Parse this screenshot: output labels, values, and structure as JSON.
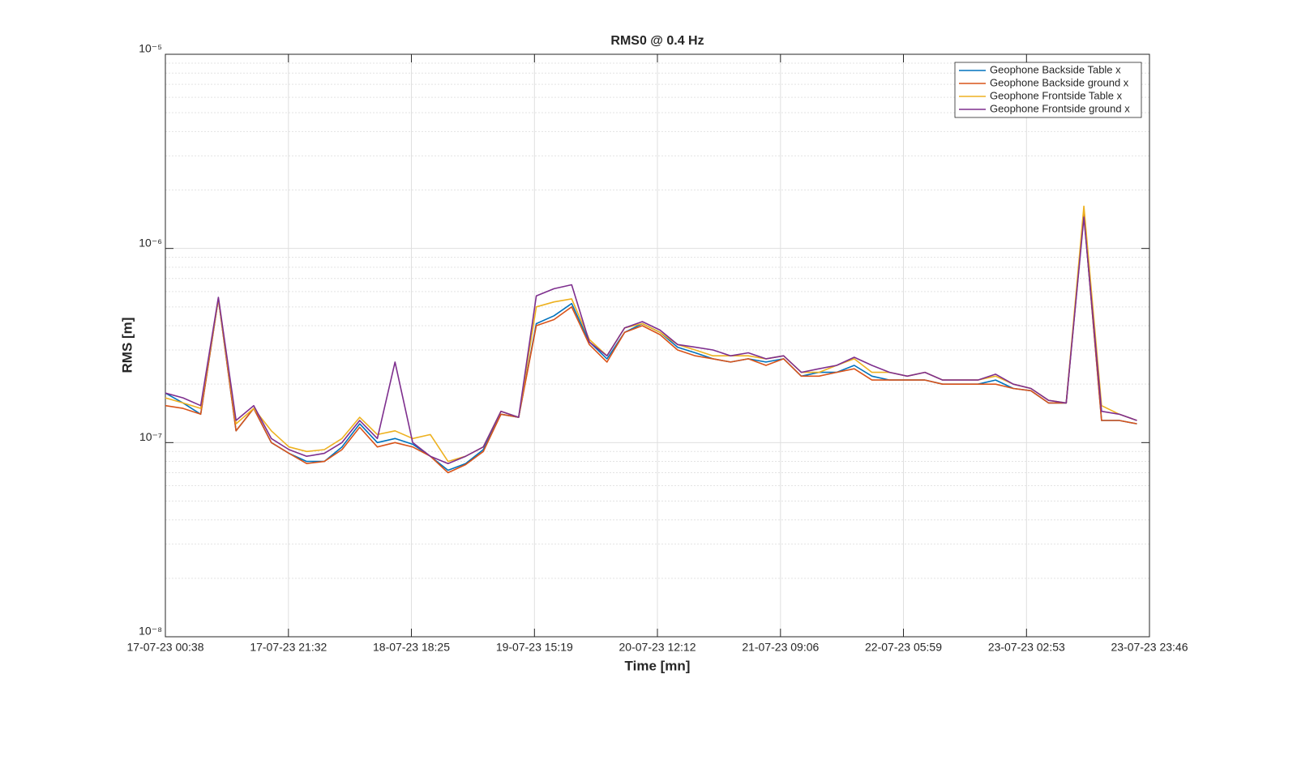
{
  "chart_data": {
    "type": "line",
    "title": "RMS0 @ 0.4 Hz",
    "x_label": "Time [mn]",
    "y_label": "RMS [m]",
    "x": [
      "17-07-23 00:38",
      "17-07-23 03:38",
      "17-07-23 06:38",
      "17-07-23 09:38",
      "17-07-23 12:38",
      "17-07-23 15:38",
      "17-07-23 18:38",
      "17-07-23 21:38",
      "18-07-23 00:38",
      "18-07-23 03:38",
      "18-07-23 06:38",
      "18-07-23 09:38",
      "18-07-23 12:38",
      "18-07-23 15:38",
      "18-07-23 18:38",
      "18-07-23 21:38",
      "19-07-23 00:38",
      "19-07-23 03:38",
      "19-07-23 06:38",
      "19-07-23 09:38",
      "19-07-23 12:38",
      "19-07-23 15:38",
      "19-07-23 18:38",
      "19-07-23 21:38",
      "20-07-23 00:38",
      "20-07-23 03:38",
      "20-07-23 06:38",
      "20-07-23 09:38",
      "20-07-23 12:38",
      "20-07-23 15:38",
      "20-07-23 18:38",
      "20-07-23 21:38",
      "21-07-23 00:38",
      "21-07-23 03:38",
      "21-07-23 06:38",
      "21-07-23 09:38",
      "21-07-23 12:38",
      "21-07-23 15:38",
      "21-07-23 18:38",
      "21-07-23 21:38",
      "22-07-23 00:38",
      "22-07-23 03:38",
      "22-07-23 06:38",
      "22-07-23 09:38",
      "22-07-23 12:38",
      "22-07-23 15:38",
      "22-07-23 18:38",
      "22-07-23 21:38",
      "23-07-23 00:38",
      "23-07-23 03:38",
      "23-07-23 06:38",
      "23-07-23 09:38",
      "23-07-23 12:38",
      "23-07-23 15:38",
      "23-07-23 18:38",
      "23-07-23 21:38"
    ],
    "series": [
      {
        "name": "Geophone Backside Table x",
        "color": "#0072BD",
        "values": [
          1.8e-07,
          1.6e-07,
          1.4e-07,
          5.5e-07,
          1.15e-07,
          1.5e-07,
          1e-07,
          8.8e-08,
          8e-08,
          8e-08,
          9.5e-08,
          1.25e-07,
          1e-07,
          1.05e-07,
          9.8e-08,
          8.5e-08,
          7.2e-08,
          7.8e-08,
          9.2e-08,
          1.4e-07,
          1.35e-07,
          4.1e-07,
          4.5e-07,
          5.2e-07,
          3.3e-07,
          2.7e-07,
          3.7e-07,
          4.1e-07,
          3.7e-07,
          3.1e-07,
          2.9e-07,
          2.7e-07,
          2.6e-07,
          2.7e-07,
          2.6e-07,
          2.7e-07,
          2.2e-07,
          2.3e-07,
          2.3e-07,
          2.5e-07,
          2.2e-07,
          2.1e-07,
          2.1e-07,
          2.1e-07,
          2e-07,
          2e-07,
          2e-07,
          2.1e-07,
          1.9e-07,
          1.85e-07,
          1.6e-07,
          1.6e-07,
          1.5e-06,
          1.3e-07,
          1.3e-07,
          1.25e-07
        ]
      },
      {
        "name": "Geophone Backside ground x",
        "color": "#D95319",
        "values": [
          1.55e-07,
          1.5e-07,
          1.4e-07,
          5.5e-07,
          1.15e-07,
          1.5e-07,
          1e-07,
          8.8e-08,
          7.8e-08,
          8e-08,
          9.2e-08,
          1.2e-07,
          9.5e-08,
          1e-07,
          9.5e-08,
          8.5e-08,
          7e-08,
          7.7e-08,
          9e-08,
          1.4e-07,
          1.35e-07,
          4e-07,
          4.3e-07,
          5e-07,
          3.2e-07,
          2.6e-07,
          3.7e-07,
          4e-07,
          3.6e-07,
          3e-07,
          2.8e-07,
          2.7e-07,
          2.6e-07,
          2.7e-07,
          2.5e-07,
          2.7e-07,
          2.2e-07,
          2.2e-07,
          2.3e-07,
          2.4e-07,
          2.1e-07,
          2.1e-07,
          2.1e-07,
          2.1e-07,
          2e-07,
          2e-07,
          2e-07,
          2e-07,
          1.9e-07,
          1.85e-07,
          1.6e-07,
          1.6e-07,
          1.5e-06,
          1.3e-07,
          1.3e-07,
          1.25e-07
        ]
      },
      {
        "name": "Geophone Frontside Table x",
        "color": "#EDB120",
        "values": [
          1.7e-07,
          1.6e-07,
          1.5e-07,
          5.5e-07,
          1.25e-07,
          1.5e-07,
          1.15e-07,
          9.5e-08,
          9e-08,
          9.2e-08,
          1.05e-07,
          1.35e-07,
          1.1e-07,
          1.15e-07,
          1.05e-07,
          1.1e-07,
          8e-08,
          8.5e-08,
          9.5e-08,
          1.45e-07,
          1.35e-07,
          5e-07,
          5.3e-07,
          5.5e-07,
          3.4e-07,
          2.8e-07,
          3.9e-07,
          4.1e-07,
          3.7e-07,
          3.2e-07,
          3e-07,
          2.8e-07,
          2.8e-07,
          2.8e-07,
          2.7e-07,
          2.8e-07,
          2.3e-07,
          2.3e-07,
          2.5e-07,
          2.7e-07,
          2.3e-07,
          2.3e-07,
          2.2e-07,
          2.3e-07,
          2.1e-07,
          2.1e-07,
          2.1e-07,
          2.2e-07,
          2e-07,
          1.9e-07,
          1.65e-07,
          1.6e-07,
          1.65e-06,
          1.55e-07,
          1.4e-07,
          1.3e-07
        ]
      },
      {
        "name": "Geophone Frontside ground x",
        "color": "#7E2F8E",
        "values": [
          1.8e-07,
          1.7e-07,
          1.55e-07,
          5.6e-07,
          1.3e-07,
          1.55e-07,
          1.05e-07,
          9.2e-08,
          8.5e-08,
          8.8e-08,
          1e-07,
          1.3e-07,
          1.05e-07,
          2.6e-07,
          1e-07,
          8.5e-08,
          7.8e-08,
          8.5e-08,
          9.5e-08,
          1.45e-07,
          1.35e-07,
          5.7e-07,
          6.2e-07,
          6.5e-07,
          3.3e-07,
          2.8e-07,
          3.9e-07,
          4.2e-07,
          3.8e-07,
          3.2e-07,
          3.1e-07,
          3e-07,
          2.8e-07,
          2.9e-07,
          2.7e-07,
          2.8e-07,
          2.3e-07,
          2.4e-07,
          2.5e-07,
          2.75e-07,
          2.5e-07,
          2.3e-07,
          2.2e-07,
          2.3e-07,
          2.1e-07,
          2.1e-07,
          2.1e-07,
          2.25e-07,
          2e-07,
          1.9e-07,
          1.65e-07,
          1.6e-07,
          1.45e-06,
          1.45e-07,
          1.4e-07,
          1.3e-07
        ]
      }
    ],
    "xlim": [
      "17-07-23 00:38",
      "23-07-23 23:46"
    ],
    "xticks": [
      "17-07-23 00:38",
      "17-07-23 21:32",
      "18-07-23 18:25",
      "19-07-23 15:19",
      "20-07-23 12:12",
      "21-07-23 09:06",
      "22-07-23 05:59",
      "23-07-23 02:53",
      "23-07-23 23:46"
    ],
    "ylim": [
      1e-08,
      1e-05
    ],
    "yticks": [
      {
        "value": 1e-08,
        "label": "10⁻⁸"
      },
      {
        "value": 1e-07,
        "label": "10⁻⁷"
      },
      {
        "value": 1e-06,
        "label": "10⁻⁶"
      },
      {
        "value": 1e-05,
        "label": "10⁻⁵"
      }
    ],
    "y_scale": "log",
    "grid": true,
    "minor_grid": true,
    "legend": "upper right"
  }
}
